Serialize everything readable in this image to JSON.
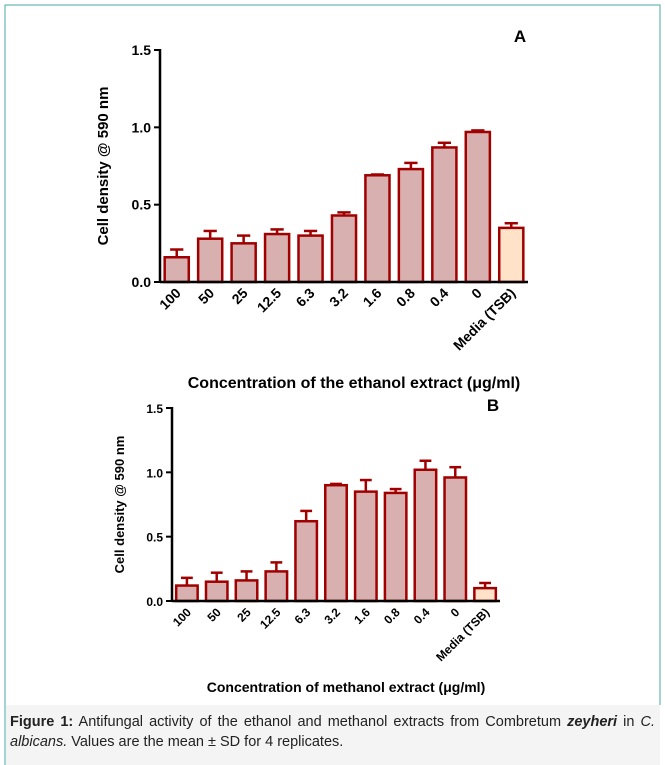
{
  "chart_data": [
    {
      "type": "bar",
      "panel": "A",
      "ylabel": "Cell density @ 590 nm",
      "xlabel": "Concentration of the ethanol extract (μg/ml)",
      "categories": [
        "100",
        "50",
        "25",
        "12.5",
        "6.3",
        "3.2",
        "1.6",
        "0.8",
        "0.4",
        "0",
        "Media (TSB)"
      ],
      "values": [
        0.16,
        0.28,
        0.25,
        0.31,
        0.3,
        0.43,
        0.69,
        0.73,
        0.87,
        0.97,
        0.35
      ],
      "errors": [
        0.05,
        0.05,
        0.05,
        0.03,
        0.03,
        0.02,
        0.005,
        0.04,
        0.03,
        0.01,
        0.03
      ],
      "colors": [
        "#d8b0b0",
        "#d8b0b0",
        "#d8b0b0",
        "#d8b0b0",
        "#d8b0b0",
        "#d8b0b0",
        "#d8b0b0",
        "#d8b0b0",
        "#d8b0b0",
        "#d8b0b0",
        "#ffe2c8"
      ],
      "edge_color": "#a00000",
      "ylim": [
        0,
        1.5
      ],
      "yticks": [
        {
          "value": 0,
          "label": "0.0"
        },
        {
          "value": 0.5,
          "label": "0.5"
        },
        {
          "value": 1,
          "label": "1.0"
        },
        {
          "value": 1.5,
          "label": "1.5"
        }
      ]
    },
    {
      "type": "bar",
      "panel": "B",
      "ylabel": "Cell density @ 590 nm",
      "xlabel": "Concentration of methanol extract (μg/ml)",
      "categories": [
        "100",
        "50",
        "25",
        "12.5",
        "6.3",
        "3.2",
        "1.6",
        "0.8",
        "0.4",
        "0",
        "Media (TSB)"
      ],
      "values": [
        0.12,
        0.15,
        0.16,
        0.23,
        0.62,
        0.9,
        0.85,
        0.84,
        1.02,
        0.96,
        0.1
      ],
      "errors": [
        0.06,
        0.07,
        0.07,
        0.07,
        0.08,
        0.01,
        0.09,
        0.03,
        0.07,
        0.08,
        0.04
      ],
      "colors": [
        "#d8b0b0",
        "#d8b0b0",
        "#d8b0b0",
        "#d8b0b0",
        "#d8b0b0",
        "#d8b0b0",
        "#d8b0b0",
        "#d8b0b0",
        "#d8b0b0",
        "#d8b0b0",
        "#ffe2c8"
      ],
      "edge_color": "#a00000",
      "ylim": [
        0,
        1.5
      ],
      "yticks": [
        {
          "value": 0,
          "label": "0.0"
        },
        {
          "value": 0.5,
          "label": "0.5"
        },
        {
          "value": 1,
          "label": "1.0"
        },
        {
          "value": 1.5,
          "label": "1.5"
        }
      ]
    }
  ],
  "caption": {
    "label": "Figure 1:",
    "parts": [
      " Antifungal activity of the ethanol and methanol extracts from Combretum ",
      "zeyheri",
      " in ",
      "C. albicans.",
      " Values are the mean ± SD for 4 replicates."
    ]
  }
}
